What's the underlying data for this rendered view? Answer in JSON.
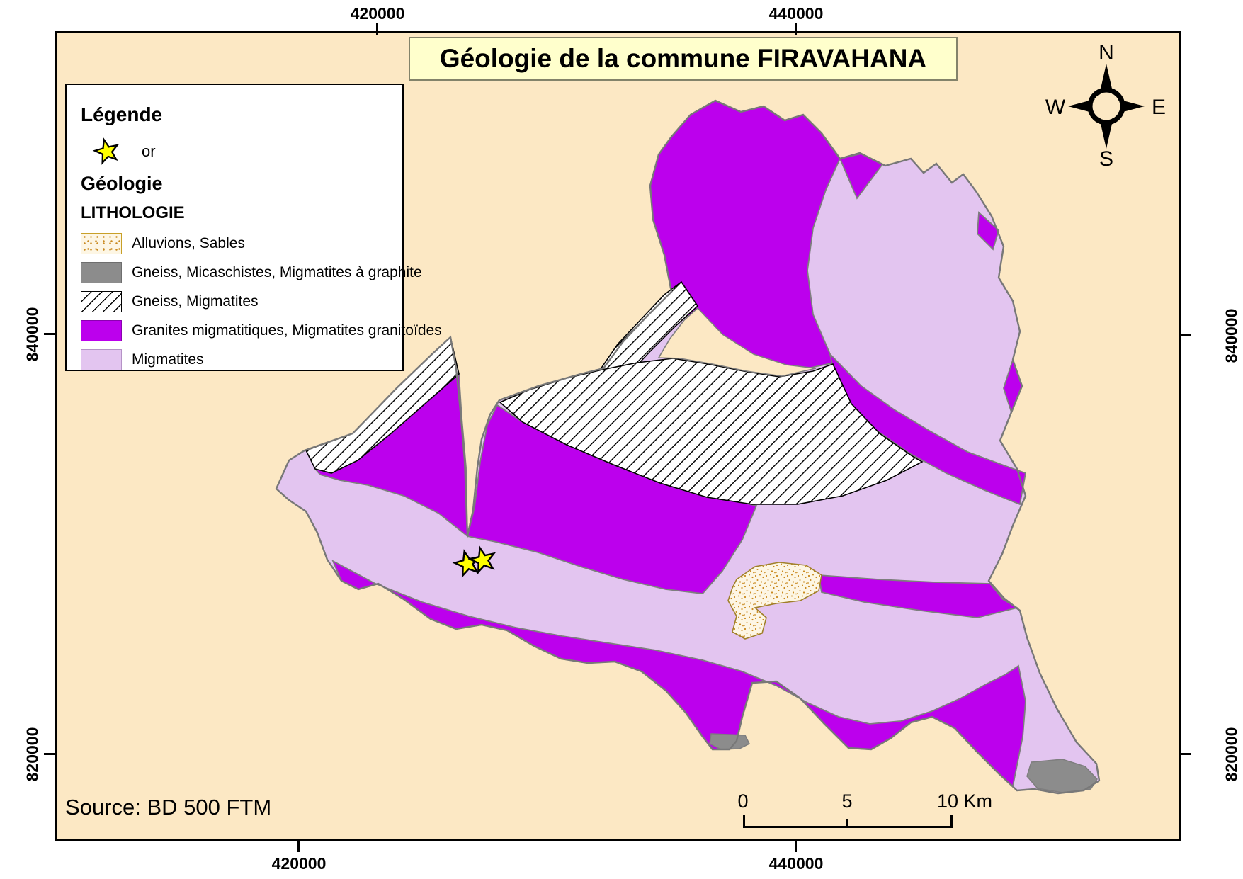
{
  "title": "Géologie de la commune FIRAVAHANA",
  "legend": {
    "heading": "Légende",
    "star_item_label": "or",
    "group_heading": "Géologie",
    "section_heading": "LITHOLOGIE",
    "items": [
      {
        "swatch": "stipple",
        "label": "Alluvions, Sables"
      },
      {
        "swatch": "gray",
        "label": "Gneiss, Micaschistes, Migmatites à graphite"
      },
      {
        "swatch": "hatch",
        "label": "Gneiss, Migmatites"
      },
      {
        "swatch": "magenta",
        "label": "Granites migmatitiques, Migmatites granitoïdes"
      },
      {
        "swatch": "lavender",
        "label": "Migmatites"
      }
    ]
  },
  "compass": {
    "north": "N",
    "east": "E",
    "south": "S",
    "west": "W"
  },
  "grid": {
    "top": [
      "420000",
      "440000"
    ],
    "bottom": [
      "420000",
      "440000"
    ],
    "left": [
      "840000",
      "820000"
    ],
    "right": [
      "840000",
      "820000"
    ]
  },
  "scalebar": {
    "tick0": "0",
    "tick5": "5",
    "tick10": "10 Km"
  },
  "source": "Source: BD 500 FTM",
  "colors": {
    "background": "#FCE8C4",
    "granites": "#BC00ED",
    "migmatites": "#E3C5F0",
    "gneiss_graphite": "#8C8C8C",
    "alluvions_bg": "#FDF6E4",
    "alluvions_dot": "#C9891E",
    "title_bg": "#FFFFCC",
    "star": "#FFFF00"
  }
}
